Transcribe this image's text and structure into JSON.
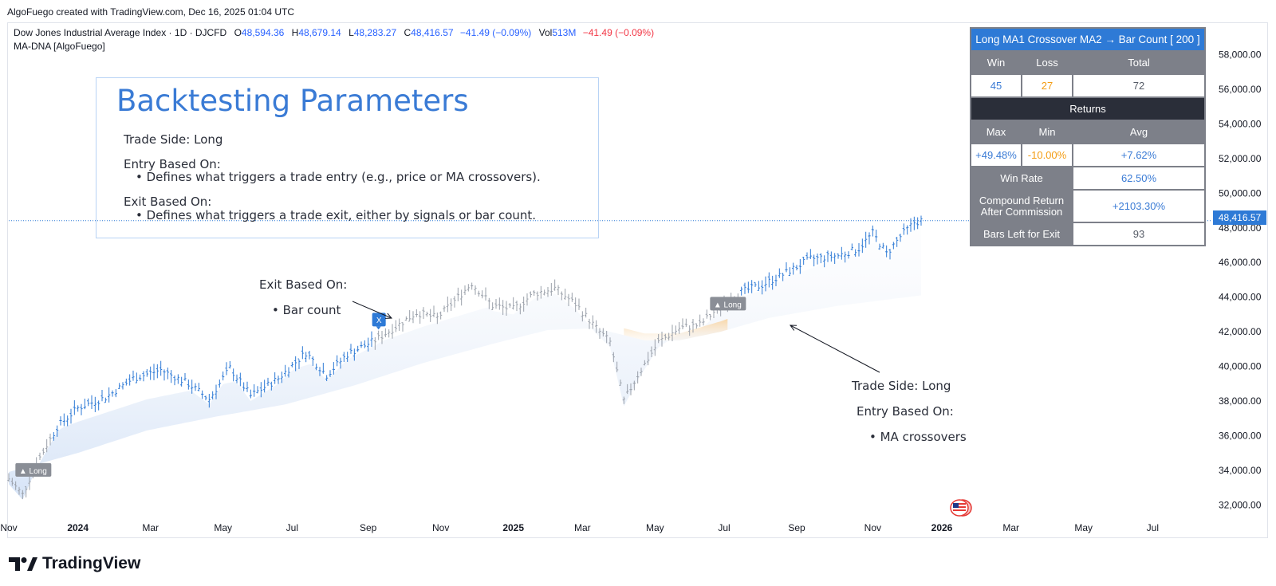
{
  "credit": "AlgoFuego created with TradingView.com, Dec 16, 2025 01:04 UTC",
  "legend": {
    "symbol": "Dow Jones Industrial Average Index · 1D · DJCFD",
    "o_label": "O",
    "o_val": "48,594.36",
    "h_label": "H",
    "h_val": "48,679.14",
    "l_label": "L",
    "l_val": "48,283.27",
    "c_label": "C",
    "c_val": "48,416.57",
    "change": "−41.49 (−0.09%)",
    "vol_label": "Vol",
    "vol_val": "513M",
    "vol_change": "−41.49 (−0.09%)",
    "indicator": "MA-DNA [AlgoFuego]"
  },
  "backtest": {
    "title": "Backtesting Parameters",
    "trade_side": "Trade Side: Long",
    "entry_label": "Entry Based On:",
    "entry_desc": "• Defines what triggers a trade entry (e.g., price or MA crossovers).",
    "exit_label": "Exit Based On:",
    "exit_desc": "• Defines what triggers a trade exit, either by signals or bar count."
  },
  "notes": {
    "exit_title": "Exit Based On:",
    "exit_item": "• Bar count",
    "trade_side": "Trade Side: Long",
    "entry_title": "Entry Based On:",
    "entry_item": "• MA crossovers"
  },
  "stats": {
    "header": "Long MA1 Crossover MA2 → Bar Count [ 200 ]",
    "win_label": "Win",
    "loss_label": "Loss",
    "total_label": "Total",
    "win": "45",
    "loss": "27",
    "total": "72",
    "returns_label": "Returns",
    "max_label": "Max",
    "min_label": "Min",
    "avg_label": "Avg",
    "max": "+49.48%",
    "min": "-10.00%",
    "avg": "+7.62%",
    "winrate_label": "Win Rate",
    "winrate": "62.50%",
    "compound_label_1": "Compound Return",
    "compound_label_2": "After Commission",
    "compound": "+2103.30%",
    "bars_left_label": "Bars Left for Exit",
    "bars_left": "93"
  },
  "price_tag": "48,416.57",
  "brand": "TradingView",
  "markers": {
    "long": "▲ Long",
    "exit": "X"
  },
  "colors": {
    "up": "#2e7ad6",
    "neutral": "#9aa0aa",
    "band_blue": "#c9dcf5",
    "band_orange": "#f8d9b0",
    "accent": "#3a7bd5"
  },
  "chart_data": {
    "type": "candlestick",
    "title": "",
    "y_ticks": [
      32000,
      34000,
      36000,
      38000,
      40000,
      42000,
      44000,
      46000,
      48000,
      50000,
      52000,
      54000,
      56000,
      58000
    ],
    "y_tick_labels": [
      "32,000.00",
      "34,000.00",
      "36,000.00",
      "38,000.00",
      "40,000.00",
      "42,000.00",
      "44,000.00",
      "46,000.00",
      "48,000.00",
      "50,000.00",
      "52,000.00",
      "54,000.00",
      "56,000.00",
      "58,000.00"
    ],
    "ylim": [
      31000,
      59500
    ],
    "x_ticks": [
      "Nov",
      "2024",
      "Mar",
      "May",
      "Jul",
      "Sep",
      "Nov",
      "2025",
      "Mar",
      "May",
      "Jul",
      "Sep",
      "Nov",
      "2026",
      "Mar",
      "May",
      "Jul"
    ],
    "x_tick_index": [
      0,
      20,
      41,
      62,
      82,
      104,
      125,
      146,
      166,
      187,
      207,
      228,
      250,
      270,
      290,
      311,
      331
    ],
    "last_index": 264,
    "last_price": 48416.57,
    "price_path": [
      [
        0,
        33500
      ],
      [
        4,
        32600
      ],
      [
        8,
        34400
      ],
      [
        14,
        36500
      ],
      [
        20,
        37600
      ],
      [
        28,
        38200
      ],
      [
        36,
        39300
      ],
      [
        44,
        39800
      ],
      [
        52,
        39000
      ],
      [
        58,
        38100
      ],
      [
        64,
        39900
      ],
      [
        70,
        38300
      ],
      [
        78,
        39300
      ],
      [
        86,
        40800
      ],
      [
        92,
        39500
      ],
      [
        98,
        40700
      ],
      [
        106,
        41500
      ],
      [
        112,
        42300
      ],
      [
        118,
        43100
      ],
      [
        124,
        42800
      ],
      [
        130,
        44000
      ],
      [
        134,
        44800
      ],
      [
        140,
        43500
      ],
      [
        146,
        43300
      ],
      [
        152,
        44200
      ],
      [
        158,
        44500
      ],
      [
        164,
        43600
      ],
      [
        170,
        42200
      ],
      [
        174,
        41400
      ],
      [
        178,
        38000
      ],
      [
        182,
        39500
      ],
      [
        188,
        41400
      ],
      [
        194,
        42200
      ],
      [
        200,
        42400
      ],
      [
        206,
        43500
      ],
      [
        212,
        44300
      ],
      [
        218,
        44700
      ],
      [
        224,
        45300
      ],
      [
        232,
        46200
      ],
      [
        240,
        46400
      ],
      [
        246,
        46800
      ],
      [
        250,
        47700
      ],
      [
        254,
        46500
      ],
      [
        258,
        47500
      ],
      [
        262,
        48300
      ],
      [
        264,
        48416
      ]
    ],
    "ma_band": {
      "upper": [
        [
          0,
          34100
        ],
        [
          20,
          35600
        ],
        [
          40,
          36900
        ],
        [
          60,
          37700
        ],
        [
          80,
          38500
        ],
        [
          100,
          39700
        ],
        [
          120,
          41100
        ],
        [
          140,
          42300
        ],
        [
          156,
          43200
        ],
        [
          170,
          42900
        ],
        [
          178,
          42200
        ],
        [
          184,
          41900
        ],
        [
          194,
          41900
        ],
        [
          206,
          42600
        ],
        [
          220,
          43600
        ],
        [
          240,
          45000
        ],
        [
          264,
          47200
        ]
      ],
      "lower": [
        [
          0,
          33900
        ],
        [
          20,
          35000
        ],
        [
          40,
          36300
        ],
        [
          60,
          37100
        ],
        [
          80,
          37800
        ],
        [
          100,
          38900
        ],
        [
          120,
          40200
        ],
        [
          140,
          41300
        ],
        [
          156,
          42100
        ],
        [
          170,
          42200
        ],
        [
          178,
          41800
        ],
        [
          184,
          41500
        ],
        [
          194,
          41500
        ],
        [
          206,
          42000
        ],
        [
          220,
          42800
        ],
        [
          240,
          43500
        ],
        [
          264,
          44100
        ]
      ]
    },
    "up_ranges": [
      [
        13,
        105
      ],
      [
        212,
        264
      ]
    ],
    "orange_range": [
      178,
      208
    ],
    "signals": [
      {
        "type": "long",
        "index": 7,
        "price": 34000
      },
      {
        "type": "exit",
        "index": 107,
        "price": 41800
      },
      {
        "type": "long",
        "index": 208,
        "price": 43600
      }
    ]
  }
}
